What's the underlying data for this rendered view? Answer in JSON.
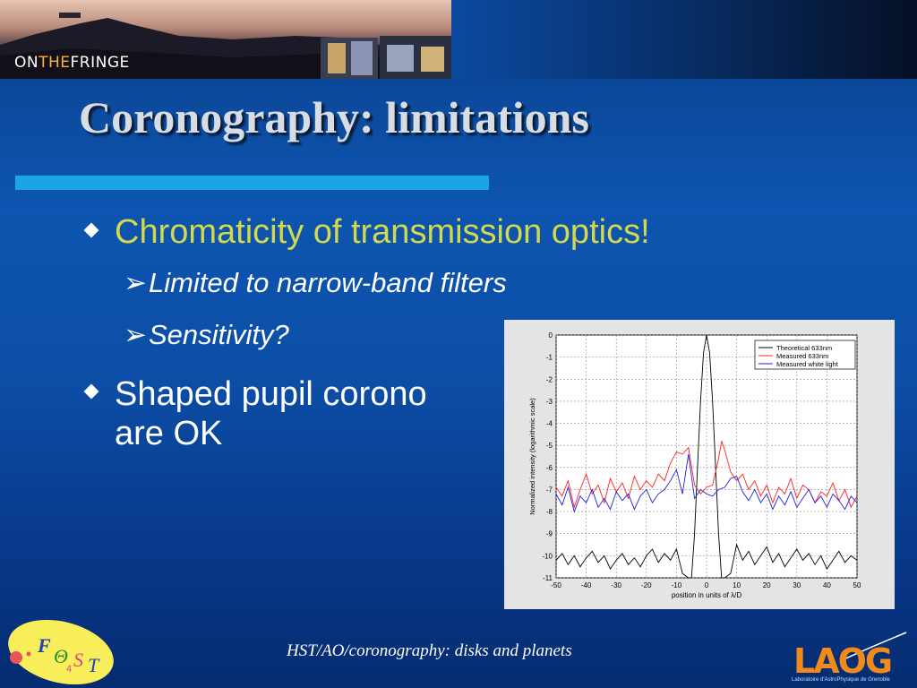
{
  "banner": {
    "logo_left": "ON",
    "logo_mid": "THE",
    "logo_right": "FRINGE"
  },
  "title": "Coronography: limitations",
  "bullets": [
    {
      "text": "Chromaticity of transmission optics!",
      "color": "#d4d84a",
      "subs": [
        "Limited to narrow-band filters",
        "Sensitivity?"
      ]
    },
    {
      "text_line1": "Shaped pupil corono",
      "text_line2": "are OK",
      "color": "#ffffff"
    }
  ],
  "sub_arrow": "➢",
  "footer": "HST/AO/coronography: disks and planets",
  "fost_logo": {
    "F": "F",
    "theta": "Θ",
    "sub4": "4",
    "S": "S",
    "T": "T"
  },
  "laog_logo": {
    "text": "LAOG",
    "subtitle": "Laboratoire d'AstroPhysique de Grenoble"
  },
  "chart_data": {
    "type": "line",
    "xlabel": "position in units of λ/D",
    "ylabel": "Normalized intensity (logarithmic scale)",
    "xlim": [
      -50,
      50
    ],
    "ylim": [
      -11,
      0
    ],
    "xticks": [
      -50,
      -40,
      -30,
      -20,
      -10,
      0,
      10,
      20,
      30,
      40,
      50
    ],
    "yticks": [
      0,
      -1,
      -2,
      -3,
      -4,
      -5,
      -6,
      -7,
      -8,
      -9,
      -10,
      -11
    ],
    "grid": true,
    "legend_position": "top-right",
    "series": [
      {
        "name": "Theoretical 633nm",
        "color": "#000000",
        "x": [
          -50,
          -48,
          -46,
          -44,
          -42,
          -40,
          -38,
          -36,
          -34,
          -32,
          -30,
          -28,
          -26,
          -24,
          -22,
          -20,
          -18,
          -16,
          -14,
          -12,
          -10,
          -8,
          -6,
          -5,
          -4,
          -3,
          -2,
          -1,
          0,
          1,
          2,
          3,
          4,
          5,
          6,
          8,
          10,
          12,
          14,
          16,
          18,
          20,
          22,
          24,
          26,
          28,
          30,
          32,
          34,
          36,
          38,
          40,
          42,
          44,
          46,
          48,
          50
        ],
        "y": [
          -10.2,
          -9.9,
          -10.4,
          -10.0,
          -10.5,
          -10.1,
          -9.8,
          -10.3,
          -10.0,
          -10.6,
          -10.2,
          -9.9,
          -10.4,
          -10.1,
          -10.5,
          -10.0,
          -9.7,
          -10.3,
          -9.9,
          -10.2,
          -9.7,
          -10.8,
          -11.0,
          -11.0,
          -9.0,
          -6.0,
          -3.0,
          -0.8,
          0.0,
          -0.8,
          -3.0,
          -6.0,
          -9.0,
          -11.0,
          -11.0,
          -10.8,
          -9.5,
          -10.2,
          -9.8,
          -10.4,
          -10.0,
          -9.6,
          -10.3,
          -9.9,
          -10.5,
          -10.1,
          -9.7,
          -10.2,
          -9.9,
          -10.4,
          -10.0,
          -10.6,
          -10.2,
          -9.8,
          -10.3,
          -10.0,
          -10.2
        ]
      },
      {
        "name": "Measured 633nm",
        "color": "#ff2020",
        "x": [
          -50,
          -48,
          -46,
          -44,
          -42,
          -40,
          -38,
          -36,
          -34,
          -32,
          -30,
          -28,
          -26,
          -24,
          -22,
          -20,
          -18,
          -16,
          -14,
          -12,
          -10,
          -8,
          -6,
          -4,
          -2,
          0,
          2,
          4,
          5,
          6,
          8,
          10,
          12,
          14,
          16,
          18,
          20,
          22,
          24,
          26,
          28,
          30,
          32,
          34,
          36,
          38,
          40,
          42,
          44,
          46,
          48,
          50
        ],
        "y": [
          -6.9,
          -7.3,
          -6.6,
          -7.8,
          -7.0,
          -6.3,
          -7.2,
          -6.8,
          -7.6,
          -6.5,
          -7.1,
          -6.7,
          -7.4,
          -6.4,
          -7.0,
          -6.6,
          -6.9,
          -6.3,
          -6.6,
          -5.8,
          -5.3,
          -5.4,
          -5.1,
          -6.8,
          -7.2,
          -6.9,
          -6.8,
          -5.6,
          -4.8,
          -5.2,
          -6.2,
          -6.6,
          -6.3,
          -7.0,
          -6.6,
          -7.3,
          -6.8,
          -7.6,
          -6.9,
          -7.2,
          -6.5,
          -7.4,
          -6.8,
          -7.0,
          -7.6,
          -7.1,
          -7.3,
          -6.7,
          -7.5,
          -7.0,
          -7.8,
          -7.3
        ]
      },
      {
        "name": "Measured white light",
        "color": "#2020e0",
        "x": [
          -50,
          -48,
          -46,
          -44,
          -42,
          -40,
          -38,
          -36,
          -34,
          -32,
          -30,
          -28,
          -26,
          -24,
          -22,
          -20,
          -18,
          -16,
          -14,
          -12,
          -10,
          -8,
          -6,
          -4,
          -2,
          0,
          2,
          4,
          6,
          8,
          10,
          12,
          14,
          16,
          18,
          20,
          22,
          24,
          26,
          28,
          30,
          32,
          34,
          36,
          38,
          40,
          42,
          44,
          46,
          48,
          50
        ],
        "y": [
          -7.2,
          -7.7,
          -6.9,
          -8.0,
          -7.3,
          -7.6,
          -7.0,
          -7.8,
          -7.4,
          -7.9,
          -7.1,
          -7.5,
          -7.2,
          -7.9,
          -7.3,
          -7.0,
          -7.6,
          -7.2,
          -7.0,
          -6.6,
          -6.1,
          -7.2,
          -5.4,
          -7.4,
          -7.0,
          -7.2,
          -7.3,
          -7.0,
          -6.9,
          -6.5,
          -6.4,
          -7.1,
          -7.5,
          -7.0,
          -7.6,
          -7.2,
          -7.9,
          -7.3,
          -7.7,
          -7.1,
          -7.8,
          -7.4,
          -7.0,
          -7.6,
          -7.3,
          -7.8,
          -7.2,
          -7.5,
          -7.9,
          -7.3,
          -7.6
        ]
      }
    ]
  },
  "colors": {
    "title_rule": "#1aa6e6",
    "title": "#d8dde4",
    "laog_orange": "#f08a1a"
  }
}
